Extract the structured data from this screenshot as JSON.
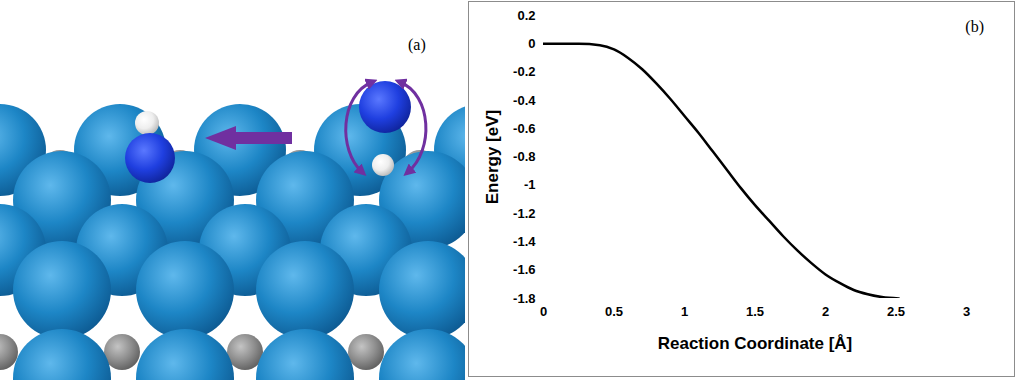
{
  "panel_a": {
    "label": "(a)"
  },
  "chart_data": {
    "type": "line",
    "panel_label": "(b)",
    "xlabel": "Reaction Coordinate [Å]",
    "ylabel": "Energy [eV]",
    "x": [
      0,
      0.25,
      0.4,
      0.5,
      0.6,
      0.7,
      0.8,
      0.9,
      1.0,
      1.1,
      1.2,
      1.3,
      1.4,
      1.5,
      1.6,
      1.7,
      1.8,
      1.9,
      2.0,
      2.1,
      2.2,
      2.3,
      2.4,
      2.52
    ],
    "series": [
      {
        "color": "#000000",
        "values": [
          0,
          0,
          -0.01,
          -0.04,
          -0.1,
          -0.18,
          -0.28,
          -0.39,
          -0.51,
          -0.63,
          -0.76,
          -0.89,
          -1.02,
          -1.14,
          -1.25,
          -1.36,
          -1.46,
          -1.55,
          -1.63,
          -1.69,
          -1.74,
          -1.77,
          -1.79,
          -1.8
        ]
      }
    ],
    "xlim": [
      0,
      3
    ],
    "xticks": [
      0,
      0.5,
      1,
      1.5,
      2,
      2.5,
      3
    ],
    "ylim": [
      -1.8,
      0.2
    ],
    "yticks": [
      0.2,
      0,
      -0.2,
      -0.4,
      -0.6,
      -0.8,
      -1,
      -1.2,
      -1.4,
      -1.6,
      -1.8
    ],
    "grid": false
  }
}
